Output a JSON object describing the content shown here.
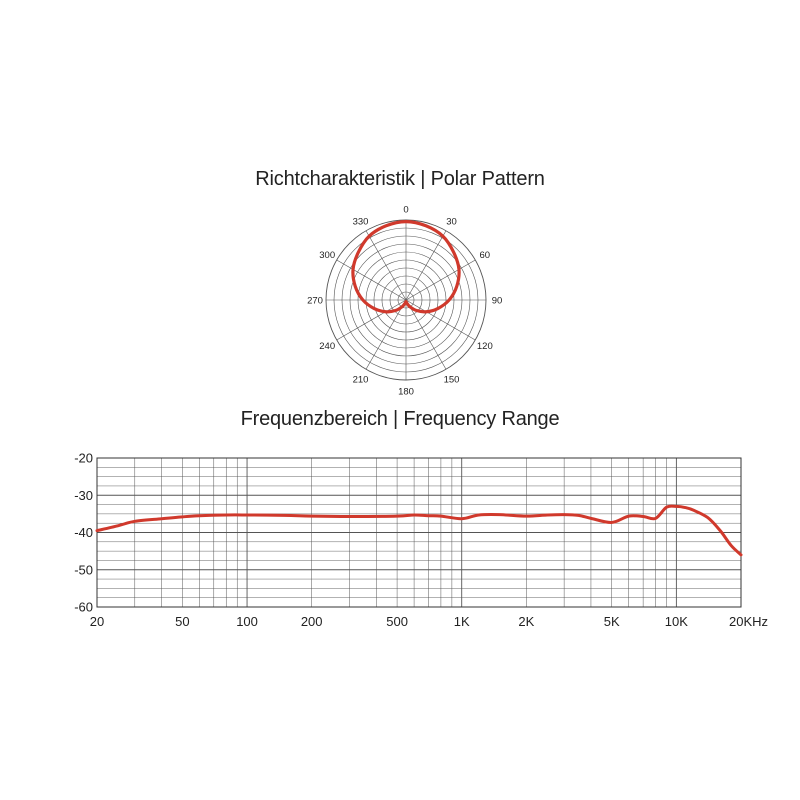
{
  "polar_title": "Richtcharakteristik | Polar Pattern",
  "freq_title": "Frequenzbereich | Frequency Range",
  "colors": {
    "curve": "#d0392c",
    "grid": "#555555"
  },
  "chart_data": [
    {
      "type": "polar",
      "title": "Richtcharakteristik | Polar Pattern",
      "angle_labels": [
        "0",
        "30",
        "60",
        "90",
        "120",
        "150",
        "180",
        "210",
        "240",
        "270",
        "300",
        "330"
      ],
      "angles_deg": [
        0,
        30,
        60,
        90,
        120,
        150,
        180,
        210,
        240,
        270,
        300,
        330
      ],
      "rings": 10,
      "series": [
        {
          "pattern": "cardioid",
          "angles_deg": [
            0,
            15,
            30,
            45,
            60,
            75,
            90,
            105,
            120,
            135,
            150,
            165,
            180
          ],
          "radius": [
            1.0,
            0.98,
            0.94,
            0.86,
            0.78,
            0.67,
            0.55,
            0.42,
            0.3,
            0.19,
            0.1,
            0.04,
            0.02
          ]
        }
      ]
    },
    {
      "type": "line",
      "title": "Frequenzbereich | Frequency Range",
      "x_scale": "log",
      "xlim": [
        20,
        20000
      ],
      "ylim": [
        -60,
        -20
      ],
      "x_ticks": [
        20,
        50,
        100,
        200,
        500,
        1000,
        2000,
        5000,
        10000,
        20000
      ],
      "x_tick_labels": [
        "20",
        "50",
        "100",
        "200",
        "500",
        "1K",
        "2K",
        "5K",
        "10K",
        "20KHz"
      ],
      "y_ticks": [
        -20,
        -30,
        -40,
        -50,
        -60
      ],
      "y_tick_labels": [
        "-20",
        "-30",
        "-40",
        "-50",
        "-60"
      ],
      "grid": true,
      "series": [
        {
          "x": [
            20,
            25,
            30,
            40,
            50,
            60,
            80,
            100,
            150,
            200,
            300,
            500,
            600,
            700,
            800,
            1000,
            1200,
            1500,
            2000,
            2500,
            3000,
            3500,
            4000,
            5000,
            6000,
            7000,
            8000,
            9000,
            10000,
            11000,
            12000,
            14000,
            16000,
            18000,
            20000
          ],
          "y": [
            -39.5,
            -38.2,
            -37,
            -36.3,
            -35.8,
            -35.5,
            -35.3,
            -35.3,
            -35.4,
            -35.6,
            -35.7,
            -35.6,
            -35.3,
            -35.5,
            -35.6,
            -36.3,
            -35.3,
            -35.2,
            -35.6,
            -35.3,
            -35.2,
            -35.4,
            -36.2,
            -37.3,
            -35.6,
            -35.7,
            -36.2,
            -33.2,
            -33.0,
            -33.3,
            -34.0,
            -36.0,
            -39.5,
            -43.5,
            -46.0
          ]
        }
      ]
    }
  ]
}
